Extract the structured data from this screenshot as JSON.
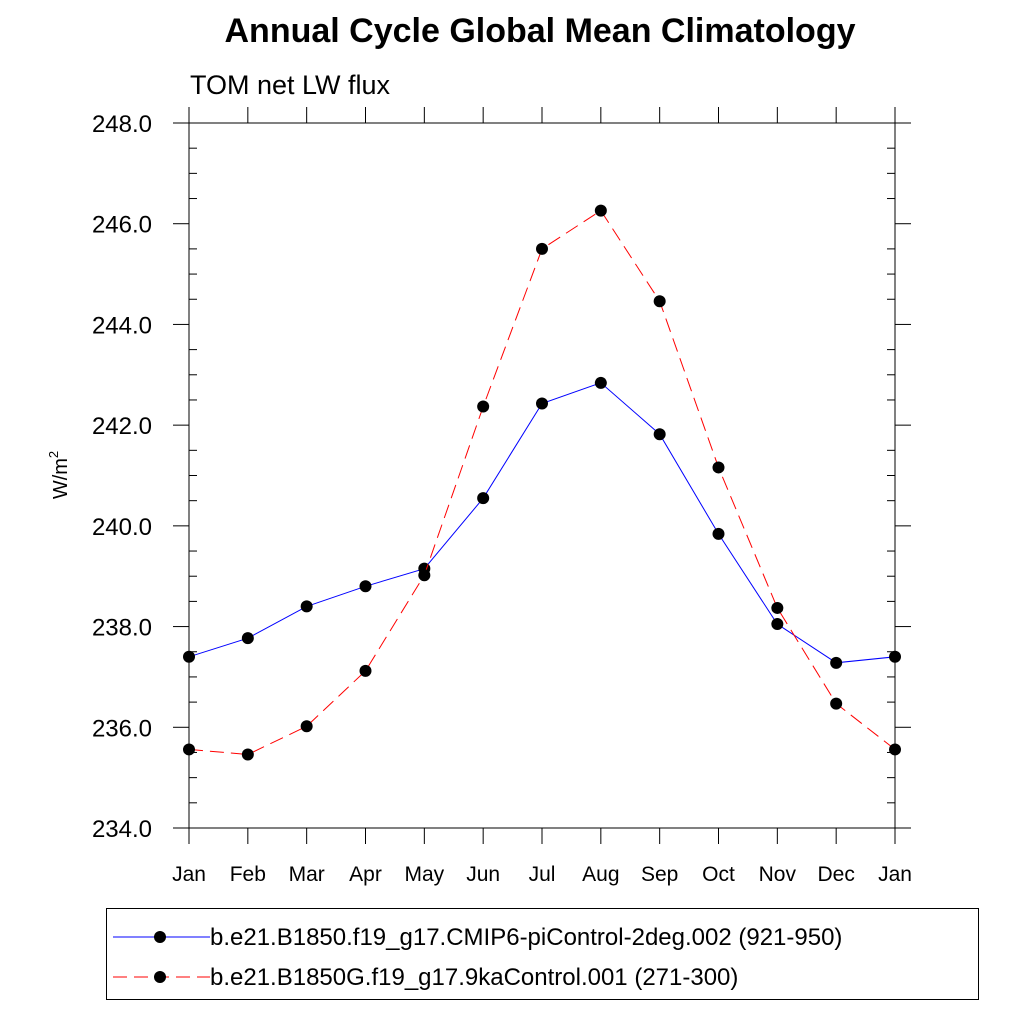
{
  "chart_data": {
    "type": "line",
    "title": "Annual Cycle Global Mean Climatology",
    "subtitle": "TOM net LW flux",
    "xlabel": "",
    "ylabel": "W/m",
    "ylabel_superscript": "2",
    "categories": [
      "Jan",
      "Feb",
      "Mar",
      "Apr",
      "May",
      "Jun",
      "Jul",
      "Aug",
      "Sep",
      "Oct",
      "Nov",
      "Dec",
      "Jan"
    ],
    "ylim": [
      234.0,
      248.0
    ],
    "yticks": [
      "234.0",
      "236.0",
      "238.0",
      "240.0",
      "242.0",
      "244.0",
      "246.0",
      "248.0"
    ],
    "grid": false,
    "legend_position": "bottom",
    "series": [
      {
        "name": "b.e21.B1850.f19_g17.CMIP6-piControl-2deg.002 (921-950)",
        "color": "#0000ff",
        "dash": "solid",
        "marker": "circle",
        "values": [
          237.4,
          237.77,
          238.4,
          238.8,
          239.15,
          240.55,
          242.43,
          242.84,
          241.82,
          239.84,
          238.05,
          237.28,
          237.4
        ]
      },
      {
        "name": "b.e21.B1850G.f19_g17.9kaControl.001 (271-300)",
        "color": "#ff0000",
        "dash": "dashed",
        "marker": "circle",
        "values": [
          235.56,
          235.46,
          236.02,
          237.12,
          239.02,
          242.37,
          245.5,
          246.26,
          244.46,
          241.16,
          238.37,
          236.47,
          235.56
        ]
      }
    ]
  }
}
